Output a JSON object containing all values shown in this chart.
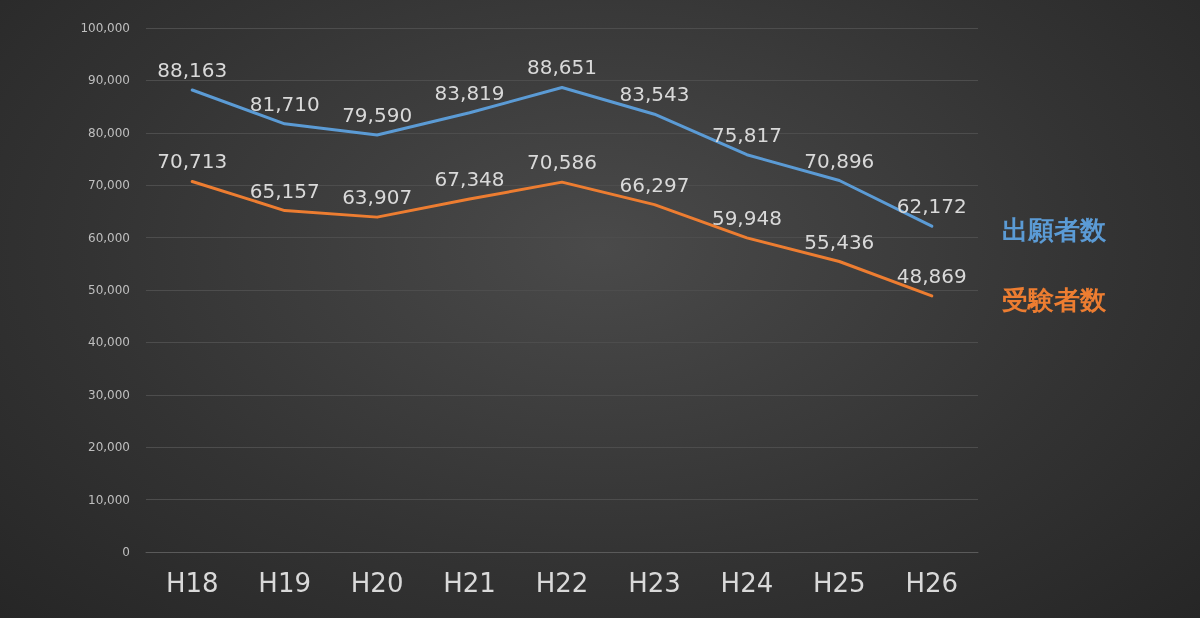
{
  "chart_data": {
    "type": "line",
    "categories": [
      "H18",
      "H19",
      "H20",
      "H21",
      "H22",
      "H23",
      "H24",
      "H25",
      "H26"
    ],
    "series": [
      {
        "name": "出願者数",
        "color": "#5b9bd5",
        "values": [
          88163,
          81710,
          79590,
          83819,
          88651,
          83543,
          75817,
          70896,
          62172
        ],
        "value_labels": [
          "88,163",
          "81,710",
          "79,590",
          "83,819",
          "88,651",
          "83,543",
          "75,817",
          "70,896",
          "62,172"
        ]
      },
      {
        "name": "受験者数",
        "color": "#ed7d31",
        "values": [
          70713,
          65157,
          63907,
          67348,
          70586,
          66297,
          59948,
          55436,
          48869
        ],
        "value_labels": [
          "70,713",
          "65,157",
          "63,907",
          "67,348",
          "70,586",
          "66,297",
          "59,948",
          "55,436",
          "48,869"
        ]
      }
    ],
    "ylim": [
      0,
      100000
    ],
    "yticks": [
      0,
      {
        "value": 10000,
        "label": "10,000"
      },
      {
        "value": 20000,
        "label": "20,000"
      },
      {
        "value": 30000,
        "label": "30,000"
      },
      {
        "value": 40000,
        "label": "40,000"
      },
      {
        "value": 50000,
        "label": "50,000"
      },
      {
        "value": 60000,
        "label": "60,000"
      },
      {
        "value": 70000,
        "label": "70,000"
      },
      {
        "value": 80000,
        "label": "80,000"
      },
      {
        "value": 90000,
        "label": "90,000"
      },
      {
        "value": 100000,
        "label": "100,000"
      }
    ],
    "grid": "y",
    "marker": "none",
    "line_style": "solid"
  }
}
